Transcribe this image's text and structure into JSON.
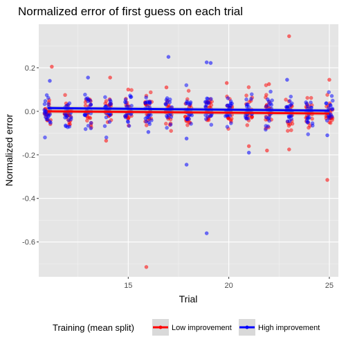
{
  "chart_data": {
    "type": "scatter",
    "title": "Normalized error of first guess on each trial",
    "xlabel": "Trial",
    "ylabel": "Normalized error",
    "xlim": [
      10.55,
      25.45
    ],
    "ylim": [
      -0.76,
      0.4
    ],
    "x_ticks": [
      15,
      20,
      25
    ],
    "y_ticks": [
      0.2,
      0.0,
      -0.2,
      -0.4,
      -0.6
    ],
    "y_tick_labels": [
      "0.2",
      "0.0",
      "-0.2",
      "-0.4",
      "-0.6"
    ],
    "grid": true,
    "background": "#e5e5e5",
    "legend": {
      "title": "Training (mean split)",
      "position": "bottom"
    },
    "series": [
      {
        "name": "Low improvement",
        "color": "#ff0000",
        "trend": {
          "x": [
            11,
            25
          ],
          "y": [
            0.0,
            -0.01
          ]
        },
        "outliers": [
          {
            "x": 11.2,
            "y": 0.205
          },
          {
            "x": 13.9,
            "y": -0.135
          },
          {
            "x": 14.1,
            "y": 0.155
          },
          {
            "x": 15.0,
            "y": 0.1
          },
          {
            "x": 15.9,
            "y": -0.715
          },
          {
            "x": 16.9,
            "y": 0.11
          },
          {
            "x": 19.9,
            "y": 0.13
          },
          {
            "x": 21.0,
            "y": -0.16
          },
          {
            "x": 21.9,
            "y": -0.18
          },
          {
            "x": 22.0,
            "y": 0.125
          },
          {
            "x": 23.0,
            "y": 0.345
          },
          {
            "x": 23.0,
            "y": -0.175
          },
          {
            "x": 24.9,
            "y": -0.315
          },
          {
            "x": 25.0,
            "y": 0.145
          }
        ]
      },
      {
        "name": "High improvement",
        "color": "#0000ff",
        "trend": {
          "x": [
            11,
            25
          ],
          "y": [
            0.015,
            0.003
          ]
        },
        "outliers": [
          {
            "x": 11.1,
            "y": 0.14
          },
          {
            "x": 13.0,
            "y": 0.155
          },
          {
            "x": 16.0,
            "y": -0.095
          },
          {
            "x": 17.0,
            "y": 0.25
          },
          {
            "x": 17.9,
            "y": -0.125
          },
          {
            "x": 17.9,
            "y": -0.245
          },
          {
            "x": 18.9,
            "y": 0.225
          },
          {
            "x": 19.1,
            "y": 0.222
          },
          {
            "x": 18.9,
            "y": -0.56
          },
          {
            "x": 21.0,
            "y": -0.19
          },
          {
            "x": 22.9,
            "y": 0.145
          },
          {
            "x": 24.9,
            "y": -0.11
          }
        ]
      }
    ]
  }
}
